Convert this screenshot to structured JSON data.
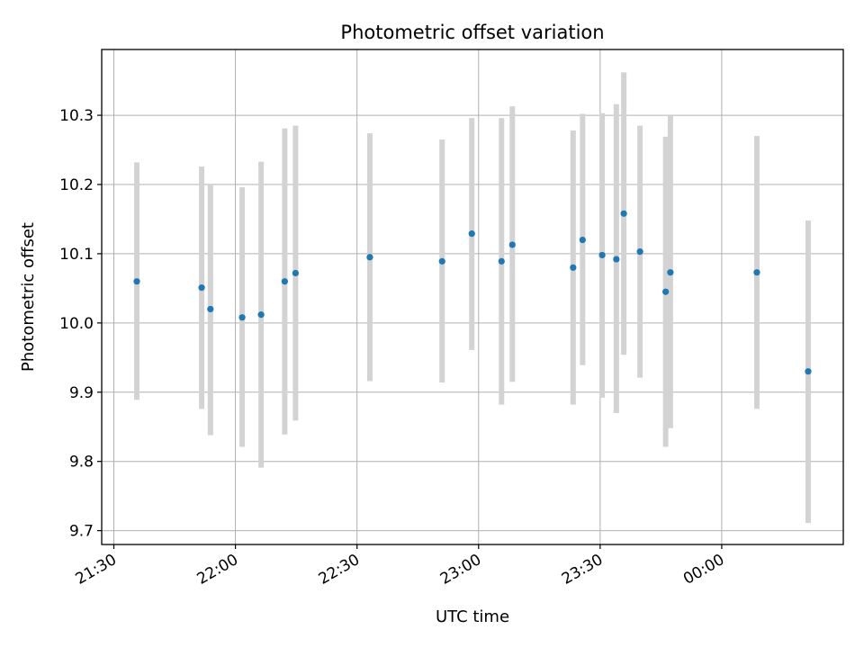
{
  "chart_data": {
    "type": "scatter",
    "title": "Photometric offset variation",
    "xlabel": "UTC time",
    "ylabel": "Photometric offset",
    "grid": true,
    "x_unit": "UTC time (HH:MM)",
    "xlim": [
      "21:27",
      "00:30"
    ],
    "ylim": [
      9.68,
      10.395
    ],
    "x_ticks": [
      "21:30",
      "22:00",
      "22:30",
      "23:00",
      "23:30",
      "00:00"
    ],
    "y_ticks": [
      "9.7",
      "9.8",
      "9.9",
      "10.0",
      "10.1",
      "10.2",
      "10.3"
    ],
    "colors": {
      "marker": "#1f77b4",
      "errorbar": "#d3d3d3",
      "grid": "#b0b0b0"
    },
    "series": [
      {
        "points": [
          {
            "x": "21:35:40",
            "y": 10.06,
            "lo": 9.889,
            "hi": 10.232
          },
          {
            "x": "21:51:40",
            "y": 10.051,
            "lo": 9.876,
            "hi": 10.226
          },
          {
            "x": "21:53:50",
            "y": 10.02,
            "lo": 9.838,
            "hi": 10.2
          },
          {
            "x": "22:01:40",
            "y": 10.008,
            "lo": 9.821,
            "hi": 10.196
          },
          {
            "x": "22:06:20",
            "y": 10.012,
            "lo": 9.791,
            "hi": 10.233
          },
          {
            "x": "22:12:10",
            "y": 10.06,
            "lo": 9.839,
            "hi": 10.281
          },
          {
            "x": "22:14:50",
            "y": 10.072,
            "lo": 9.859,
            "hi": 10.285
          },
          {
            "x": "22:33:10",
            "y": 10.095,
            "lo": 9.916,
            "hi": 10.274
          },
          {
            "x": "22:51:00",
            "y": 10.089,
            "lo": 9.914,
            "hi": 10.265
          },
          {
            "x": "22:58:20",
            "y": 10.129,
            "lo": 9.961,
            "hi": 10.296
          },
          {
            "x": "23:05:40",
            "y": 10.089,
            "lo": 9.882,
            "hi": 10.296
          },
          {
            "x": "23:08:20",
            "y": 10.113,
            "lo": 9.915,
            "hi": 10.313
          },
          {
            "x": "23:23:20",
            "y": 10.08,
            "lo": 9.882,
            "hi": 10.278
          },
          {
            "x": "23:25:40",
            "y": 10.12,
            "lo": 9.939,
            "hi": 10.302
          },
          {
            "x": "23:30:30",
            "y": 10.098,
            "lo": 9.892,
            "hi": 10.303
          },
          {
            "x": "23:34:00",
            "y": 10.092,
            "lo": 9.87,
            "hi": 10.316
          },
          {
            "x": "23:35:50",
            "y": 10.158,
            "lo": 9.954,
            "hi": 10.362
          },
          {
            "x": "23:39:50",
            "y": 10.103,
            "lo": 9.921,
            "hi": 10.285
          },
          {
            "x": "23:46:10",
            "y": 10.045,
            "lo": 9.821,
            "hi": 10.269
          },
          {
            "x": "23:47:20",
            "y": 10.073,
            "lo": 9.848,
            "hi": 10.3
          },
          {
            "x": "00:08:40",
            "y": 10.073,
            "lo": 9.876,
            "hi": 10.27
          },
          {
            "x": "00:21:20",
            "y": 9.93,
            "lo": 9.711,
            "hi": 10.148
          }
        ]
      }
    ]
  }
}
